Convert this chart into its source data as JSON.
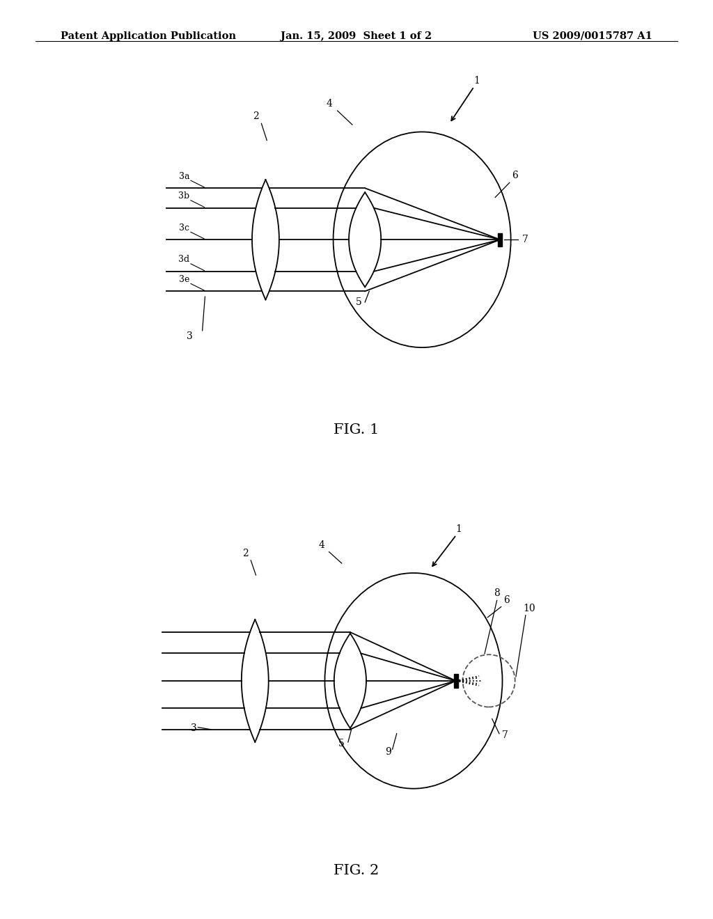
{
  "bg_color": "#ffffff",
  "line_color": "#000000",
  "header_left": "Patent Application Publication",
  "header_mid": "Jan. 15, 2009  Sheet 1 of 2",
  "header_right": "US 2009/0015787 A1",
  "fig1_label": "FIG. 1",
  "fig2_label": "FIG. 2",
  "header_fontsize": 10.5,
  "label_fontsize": 10,
  "fig_label_fontsize": 15
}
